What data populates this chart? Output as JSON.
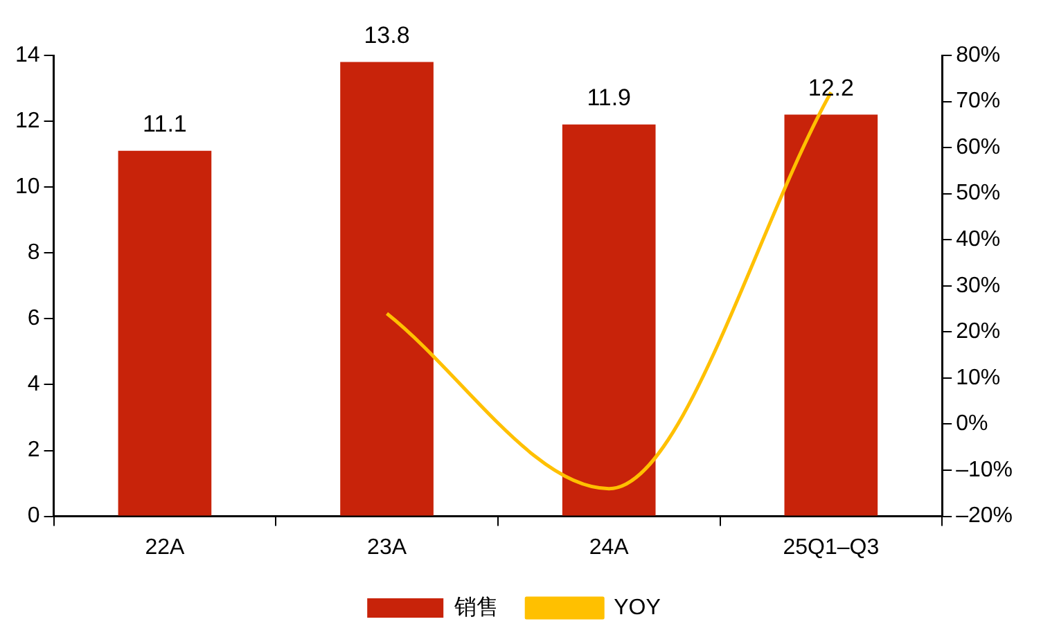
{
  "chart_data": {
    "type": "bar",
    "categories": [
      "22A",
      "23A",
      "24A",
      "25Q1–Q3"
    ],
    "series": [
      {
        "name": "销售",
        "color": "#c8230a",
        "values": [
          11.1,
          13.8,
          11.9,
          12.2
        ],
        "value_labels": [
          "11.1",
          "13.8",
          "11.9",
          "12.2"
        ]
      },
      {
        "name": "YOY",
        "type": "line",
        "axis": "y2",
        "color": "#ffc000",
        "values": [
          null,
          24,
          -14,
          72
        ]
      }
    ],
    "ylim": [
      0,
      14
    ],
    "yticks": [
      0,
      2,
      4,
      6,
      8,
      10,
      12,
      14
    ],
    "y2lim": [
      -20,
      80
    ],
    "y2ticks": [
      {
        "value": -20,
        "label": "–20%"
      },
      {
        "value": -10,
        "label": "–10%"
      },
      {
        "value": 0,
        "label": "0%"
      },
      {
        "value": 10,
        "label": "10%"
      },
      {
        "value": 20,
        "label": "20%"
      },
      {
        "value": 30,
        "label": "30%"
      },
      {
        "value": 40,
        "label": "40%"
      },
      {
        "value": 50,
        "label": "50%"
      },
      {
        "value": 60,
        "label": "60%"
      },
      {
        "value": 70,
        "label": "70%"
      },
      {
        "value": 80,
        "label": "80%"
      }
    ],
    "grid": false,
    "legend": "bottom",
    "marker": "none",
    "line_style": "solid"
  }
}
